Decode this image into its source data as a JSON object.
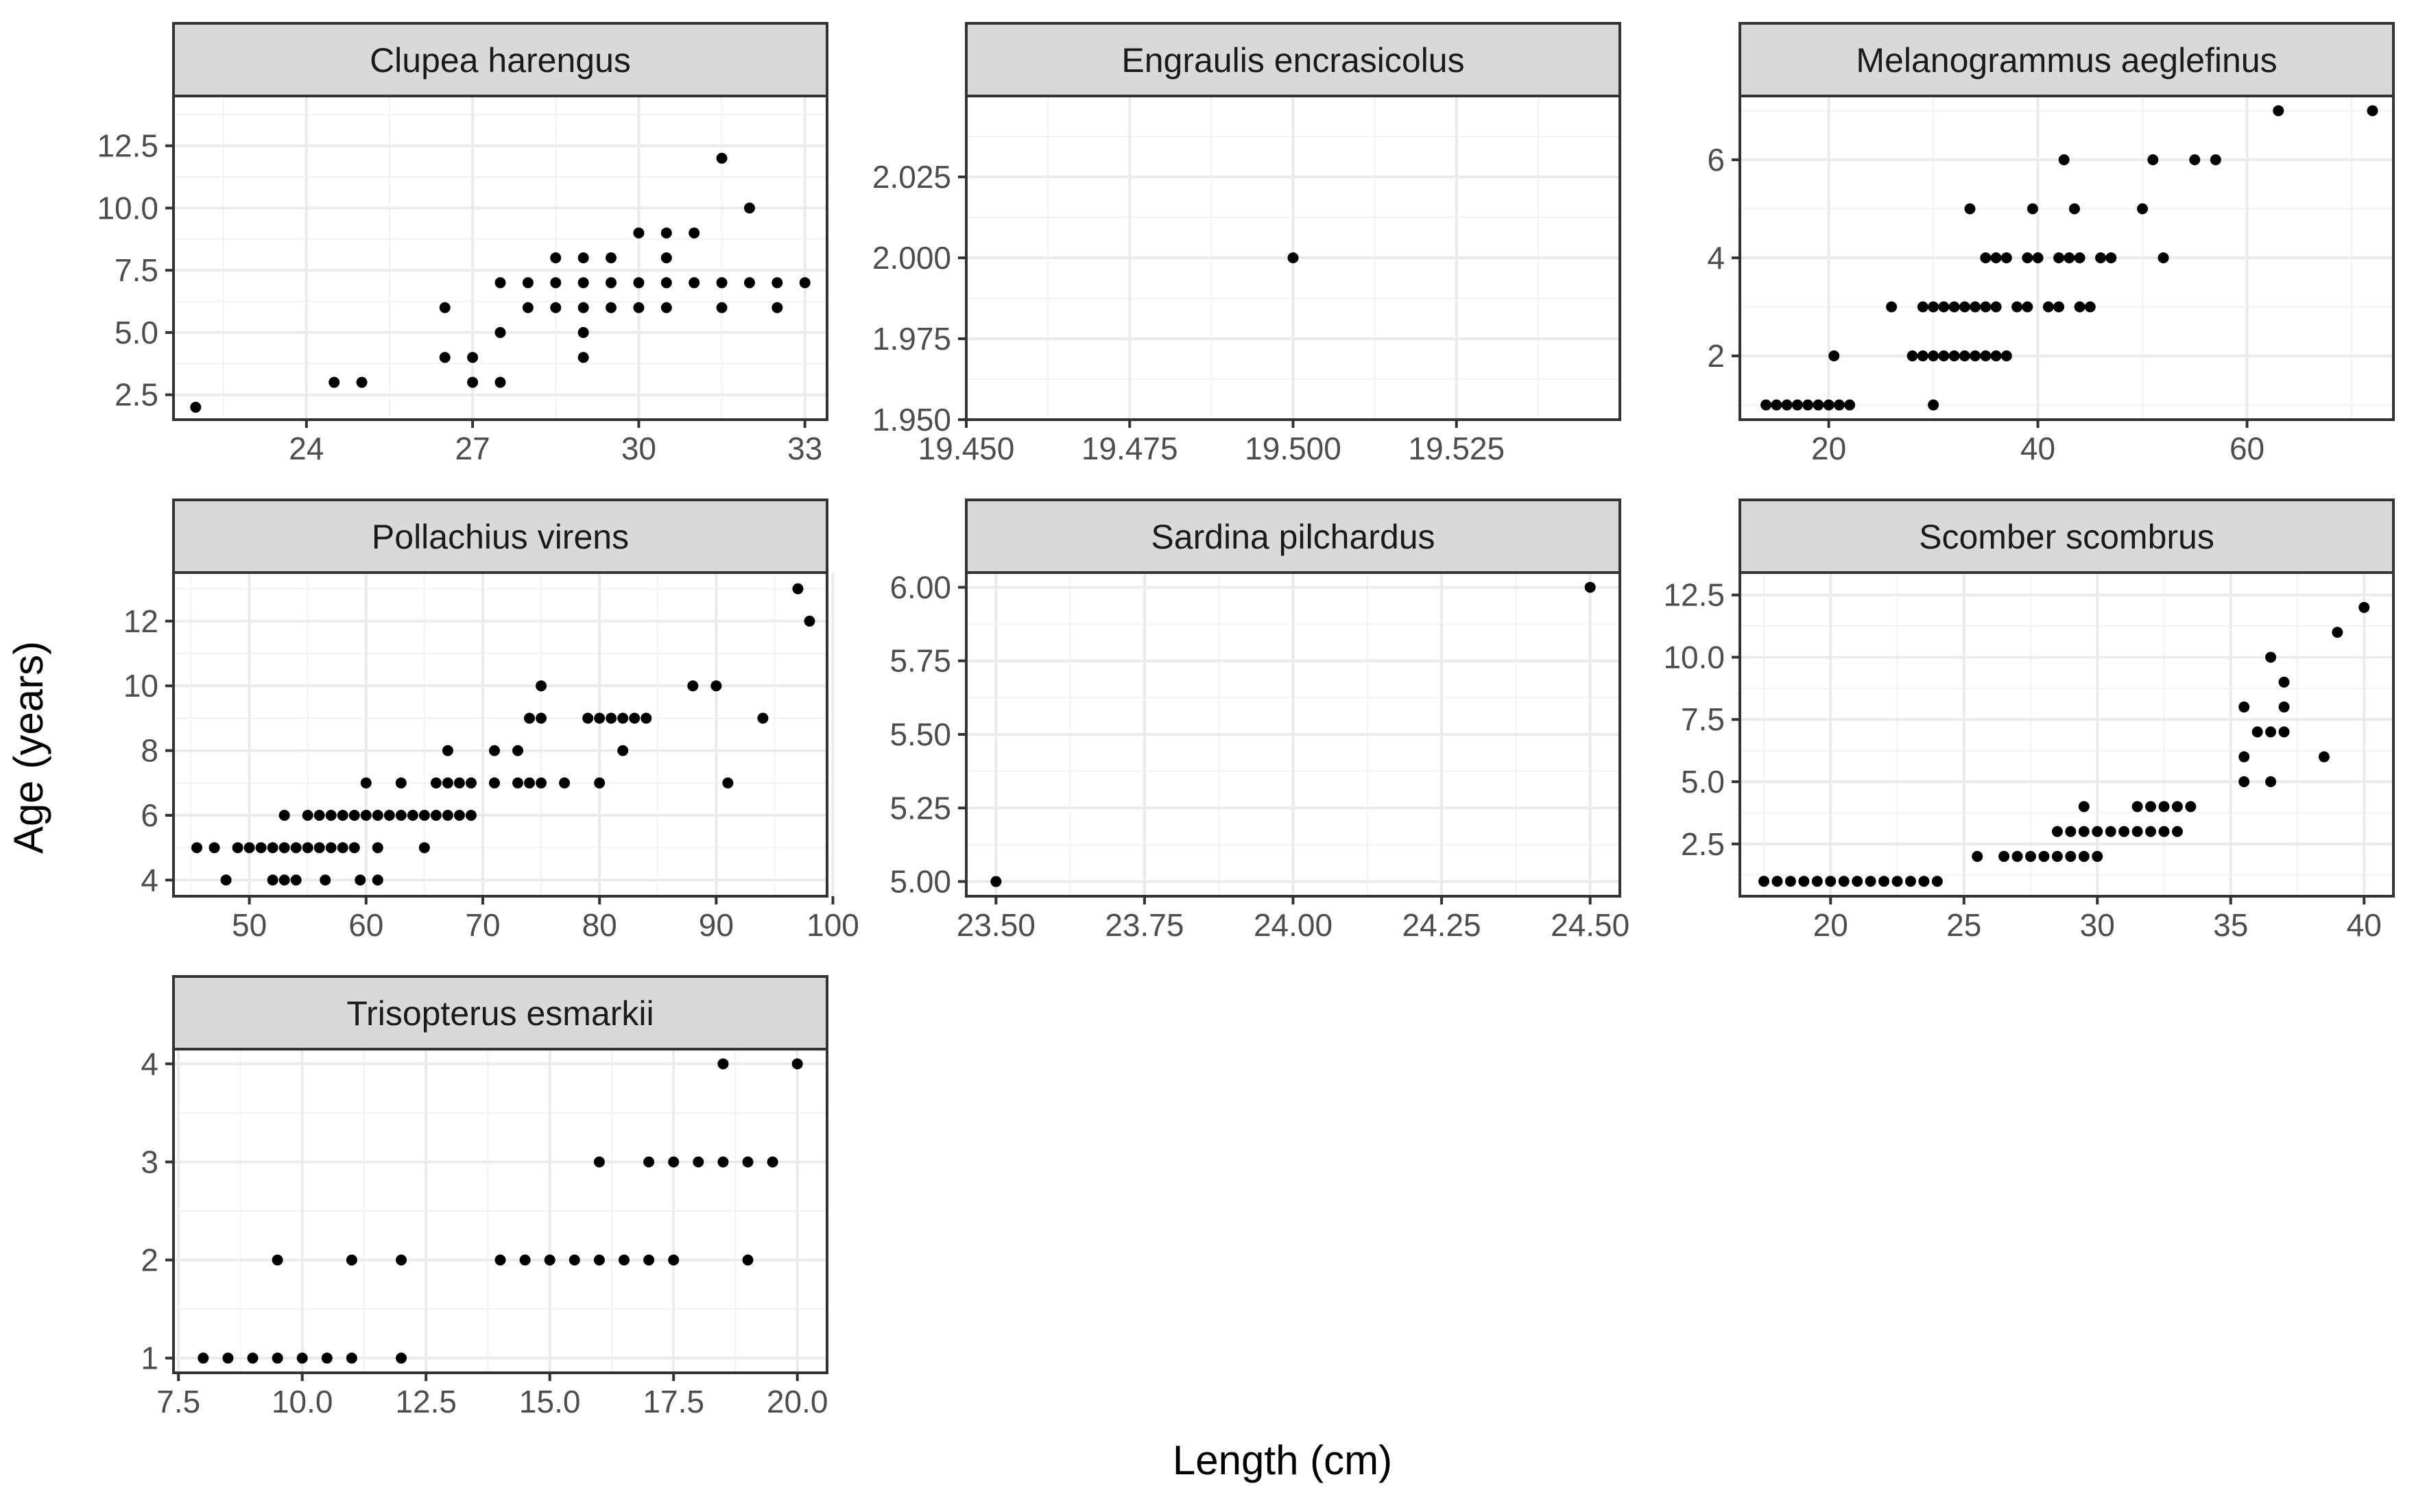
{
  "chart_data": {
    "type": "scatter",
    "xlabel": "Length (cm)",
    "ylabel": "Age (years)",
    "facets": [
      {
        "title": "Clupea harengus",
        "xlim": [
          21.6,
          33.4
        ],
        "ylim": [
          1.5,
          14.5
        ],
        "xticks": [
          24,
          27,
          30,
          33
        ],
        "xtick_labels": [
          "24",
          "27",
          "30",
          "33"
        ],
        "yticks": [
          2.5,
          5.0,
          7.5,
          10.0,
          12.5
        ],
        "ytick_labels": [
          "2.5",
          "5.0",
          "7.5",
          "10.0",
          "12.5"
        ],
        "points": [
          [
            22,
            2
          ],
          [
            24.5,
            3
          ],
          [
            25,
            3
          ],
          [
            26.5,
            4
          ],
          [
            26.5,
            6
          ],
          [
            27,
            3
          ],
          [
            27,
            4
          ],
          [
            27.5,
            3
          ],
          [
            27.5,
            5
          ],
          [
            27.5,
            7
          ],
          [
            28,
            6
          ],
          [
            28,
            7
          ],
          [
            28.5,
            6
          ],
          [
            28.5,
            7
          ],
          [
            28.5,
            8
          ],
          [
            29,
            4
          ],
          [
            29,
            5
          ],
          [
            29,
            6
          ],
          [
            29,
            7
          ],
          [
            29,
            8
          ],
          [
            29.5,
            6
          ],
          [
            29.5,
            7
          ],
          [
            29.5,
            8
          ],
          [
            30,
            6
          ],
          [
            30,
            7
          ],
          [
            30,
            9
          ],
          [
            30.5,
            6
          ],
          [
            30.5,
            7
          ],
          [
            30.5,
            8
          ],
          [
            30.5,
            9
          ],
          [
            31,
            7
          ],
          [
            31,
            9
          ],
          [
            31.5,
            6
          ],
          [
            31.5,
            7
          ],
          [
            31.5,
            12
          ],
          [
            32,
            7
          ],
          [
            32,
            10
          ],
          [
            32.5,
            6
          ],
          [
            32.5,
            7
          ],
          [
            33,
            7
          ]
        ]
      },
      {
        "title": "Engraulis encrasicolus",
        "xlim": [
          19.45,
          19.55
        ],
        "ylim": [
          1.95,
          2.05
        ],
        "xticks": [
          19.45,
          19.475,
          19.5,
          19.525
        ],
        "xtick_labels": [
          "19.450",
          "19.475",
          "19.500",
          "19.525"
        ],
        "yticks": [
          1.95,
          1.975,
          2.0,
          2.025
        ],
        "ytick_labels": [
          "1.950",
          "1.975",
          "2.000",
          "2.025"
        ],
        "points": [
          [
            19.5,
            2
          ]
        ]
      },
      {
        "title": "Melanogrammus aeglefinus",
        "xlim": [
          11.5,
          74
        ],
        "ylim": [
          0.7,
          7.3
        ],
        "xticks": [
          20,
          40,
          60
        ],
        "xtick_labels": [
          "20",
          "40",
          "60"
        ],
        "yticks": [
          2,
          4,
          6
        ],
        "ytick_labels": [
          "2",
          "4",
          "6"
        ],
        "points": [
          [
            14,
            1
          ],
          [
            15,
            1
          ],
          [
            16,
            1
          ],
          [
            17,
            1
          ],
          [
            18,
            1
          ],
          [
            19,
            1
          ],
          [
            20,
            1
          ],
          [
            21,
            1
          ],
          [
            22,
            1
          ],
          [
            20.5,
            2
          ],
          [
            30,
            1
          ],
          [
            26,
            3
          ],
          [
            28,
            2
          ],
          [
            29,
            2
          ],
          [
            30,
            2
          ],
          [
            31,
            2
          ],
          [
            32,
            2
          ],
          [
            33,
            2
          ],
          [
            34,
            2
          ],
          [
            35,
            2
          ],
          [
            36,
            2
          ],
          [
            37,
            2
          ],
          [
            29,
            3
          ],
          [
            30,
            3
          ],
          [
            31,
            3
          ],
          [
            32,
            3
          ],
          [
            33,
            3
          ],
          [
            34,
            3
          ],
          [
            35,
            3
          ],
          [
            36,
            3
          ],
          [
            38,
            3
          ],
          [
            39,
            3
          ],
          [
            41,
            3
          ],
          [
            42,
            3
          ],
          [
            44,
            3
          ],
          [
            45,
            3
          ],
          [
            35,
            4
          ],
          [
            36,
            4
          ],
          [
            37,
            4
          ],
          [
            39,
            4
          ],
          [
            40,
            4
          ],
          [
            42,
            4
          ],
          [
            43,
            4
          ],
          [
            44,
            4
          ],
          [
            46,
            4
          ],
          [
            47,
            4
          ],
          [
            52,
            4
          ],
          [
            33.5,
            5
          ],
          [
            39.5,
            5
          ],
          [
            43.5,
            5
          ],
          [
            50,
            5
          ],
          [
            42.5,
            6
          ],
          [
            51,
            6
          ],
          [
            55,
            6
          ],
          [
            57,
            6
          ],
          [
            63,
            7
          ],
          [
            72,
            7
          ]
        ]
      },
      {
        "title": "Pollachius virens",
        "xlim": [
          43.5,
          99.5
        ],
        "ylim": [
          3.5,
          13.5
        ],
        "xticks": [
          50,
          60,
          70,
          80,
          90,
          100
        ],
        "xtick_labels": [
          "50",
          "60",
          "70",
          "80",
          "90",
          "100"
        ],
        "yticks": [
          4,
          6,
          8,
          10,
          12
        ],
        "ytick_labels": [
          "4",
          "6",
          "8",
          "10",
          "12"
        ],
        "points": [
          [
            45.5,
            5
          ],
          [
            47,
            5
          ],
          [
            48,
            4
          ],
          [
            49,
            5
          ],
          [
            50,
            5
          ],
          [
            51,
            5
          ],
          [
            52,
            5
          ],
          [
            53,
            5
          ],
          [
            54,
            5
          ],
          [
            55,
            5
          ],
          [
            56,
            5
          ],
          [
            57,
            5
          ],
          [
            58,
            5
          ],
          [
            59,
            5
          ],
          [
            52,
            4
          ],
          [
            53,
            4
          ],
          [
            54,
            4
          ],
          [
            56.5,
            4
          ],
          [
            59.5,
            4
          ],
          [
            61,
            4
          ],
          [
            53,
            6
          ],
          [
            55,
            6
          ],
          [
            56,
            6
          ],
          [
            57,
            6
          ],
          [
            58,
            6
          ],
          [
            59,
            6
          ],
          [
            60,
            6
          ],
          [
            61,
            6
          ],
          [
            62,
            6
          ],
          [
            63,
            6
          ],
          [
            64,
            6
          ],
          [
            65,
            6
          ],
          [
            66,
            6
          ],
          [
            67,
            6
          ],
          [
            68,
            6
          ],
          [
            69,
            6
          ],
          [
            61,
            5
          ],
          [
            65,
            5
          ],
          [
            60,
            7
          ],
          [
            63,
            7
          ],
          [
            66,
            7
          ],
          [
            67,
            7
          ],
          [
            68,
            7
          ],
          [
            69,
            7
          ],
          [
            71,
            7
          ],
          [
            73,
            7
          ],
          [
            74,
            7
          ],
          [
            75,
            7
          ],
          [
            77,
            7
          ],
          [
            80,
            7
          ],
          [
            91,
            7
          ],
          [
            67,
            8
          ],
          [
            71,
            8
          ],
          [
            73,
            8
          ],
          [
            82,
            8
          ],
          [
            74,
            9
          ],
          [
            75,
            9
          ],
          [
            79,
            9
          ],
          [
            80,
            9
          ],
          [
            81,
            9
          ],
          [
            82,
            9
          ],
          [
            83,
            9
          ],
          [
            84,
            9
          ],
          [
            94,
            9
          ],
          [
            75,
            10
          ],
          [
            88,
            10
          ],
          [
            90,
            10
          ],
          [
            97,
            13
          ],
          [
            98,
            12
          ]
        ]
      },
      {
        "title": "Sardina pilchardus",
        "xlim": [
          23.45,
          24.55
        ],
        "ylim": [
          4.95,
          6.05
        ],
        "xticks": [
          23.5,
          23.75,
          24.0,
          24.25,
          24.5
        ],
        "xtick_labels": [
          "23.50",
          "23.75",
          "24.00",
          "24.25",
          "24.50"
        ],
        "yticks": [
          5.0,
          5.25,
          5.5,
          5.75,
          6.0
        ],
        "ytick_labels": [
          "5.00",
          "5.25",
          "5.50",
          "5.75",
          "6.00"
        ],
        "points": [
          [
            23.5,
            5
          ],
          [
            24.5,
            6
          ]
        ]
      },
      {
        "title": "Scomber scombrus",
        "xlim": [
          16.6,
          41.1
        ],
        "ylim": [
          0.4,
          13.4
        ],
        "xticks": [
          20,
          25,
          30,
          35,
          40
        ],
        "xtick_labels": [
          "20",
          "25",
          "30",
          "35",
          "40"
        ],
        "yticks": [
          2.5,
          5.0,
          7.5,
          10.0,
          12.5
        ],
        "ytick_labels": [
          "2.5",
          "5.0",
          "7.5",
          "10.0",
          "12.5"
        ],
        "points": [
          [
            17.5,
            1
          ],
          [
            18,
            1
          ],
          [
            18.5,
            1
          ],
          [
            19,
            1
          ],
          [
            19.5,
            1
          ],
          [
            20,
            1
          ],
          [
            20.5,
            1
          ],
          [
            21,
            1
          ],
          [
            21.5,
            1
          ],
          [
            22,
            1
          ],
          [
            22.5,
            1
          ],
          [
            23,
            1
          ],
          [
            23.5,
            1
          ],
          [
            24,
            1
          ],
          [
            25.5,
            2
          ],
          [
            26.5,
            2
          ],
          [
            27,
            2
          ],
          [
            27.5,
            2
          ],
          [
            28,
            2
          ],
          [
            28.5,
            2
          ],
          [
            29,
            2
          ],
          [
            29.5,
            2
          ],
          [
            30,
            2
          ],
          [
            28.5,
            3
          ],
          [
            29,
            3
          ],
          [
            29.5,
            3
          ],
          [
            30,
            3
          ],
          [
            30.5,
            3
          ],
          [
            31,
            3
          ],
          [
            31.5,
            3
          ],
          [
            32,
            3
          ],
          [
            32.5,
            3
          ],
          [
            33,
            3
          ],
          [
            29.5,
            4
          ],
          [
            31.5,
            4
          ],
          [
            32,
            4
          ],
          [
            32.5,
            4
          ],
          [
            33,
            4
          ],
          [
            33.5,
            4
          ],
          [
            35.5,
            5
          ],
          [
            36.5,
            5
          ],
          [
            35.5,
            6
          ],
          [
            38.5,
            6
          ],
          [
            36,
            7
          ],
          [
            36.5,
            7
          ],
          [
            37,
            7
          ],
          [
            35.5,
            8
          ],
          [
            37,
            8
          ],
          [
            37,
            9
          ],
          [
            36.5,
            10
          ],
          [
            39,
            11
          ],
          [
            40,
            12
          ]
        ]
      },
      {
        "title": "Trisopterus esmarkii",
        "xlim": [
          7.4,
          20.6
        ],
        "ylim": [
          0.85,
          4.15
        ],
        "xticks": [
          7.5,
          10.0,
          12.5,
          15.0,
          17.5,
          20.0
        ],
        "xtick_labels": [
          "7.5",
          "10.0",
          "12.5",
          "15.0",
          "17.5",
          "20.0"
        ],
        "yticks": [
          1,
          2,
          3,
          4
        ],
        "ytick_labels": [
          "1",
          "2",
          "3",
          "4"
        ],
        "points": [
          [
            8,
            1
          ],
          [
            8.5,
            1
          ],
          [
            9,
            1
          ],
          [
            9.5,
            1
          ],
          [
            10,
            1
          ],
          [
            10.5,
            1
          ],
          [
            11,
            1
          ],
          [
            12,
            1
          ],
          [
            9.5,
            2
          ],
          [
            11,
            2
          ],
          [
            12,
            2
          ],
          [
            14,
            2
          ],
          [
            14.5,
            2
          ],
          [
            15,
            2
          ],
          [
            15.5,
            2
          ],
          [
            16,
            2
          ],
          [
            16.5,
            2
          ],
          [
            17,
            2
          ],
          [
            17.5,
            2
          ],
          [
            19,
            2
          ],
          [
            16,
            3
          ],
          [
            17,
            3
          ],
          [
            17.5,
            3
          ],
          [
            18,
            3
          ],
          [
            18.5,
            3
          ],
          [
            19,
            3
          ],
          [
            19.5,
            3
          ],
          [
            18.5,
            4
          ],
          [
            20,
            4
          ]
        ]
      }
    ]
  }
}
